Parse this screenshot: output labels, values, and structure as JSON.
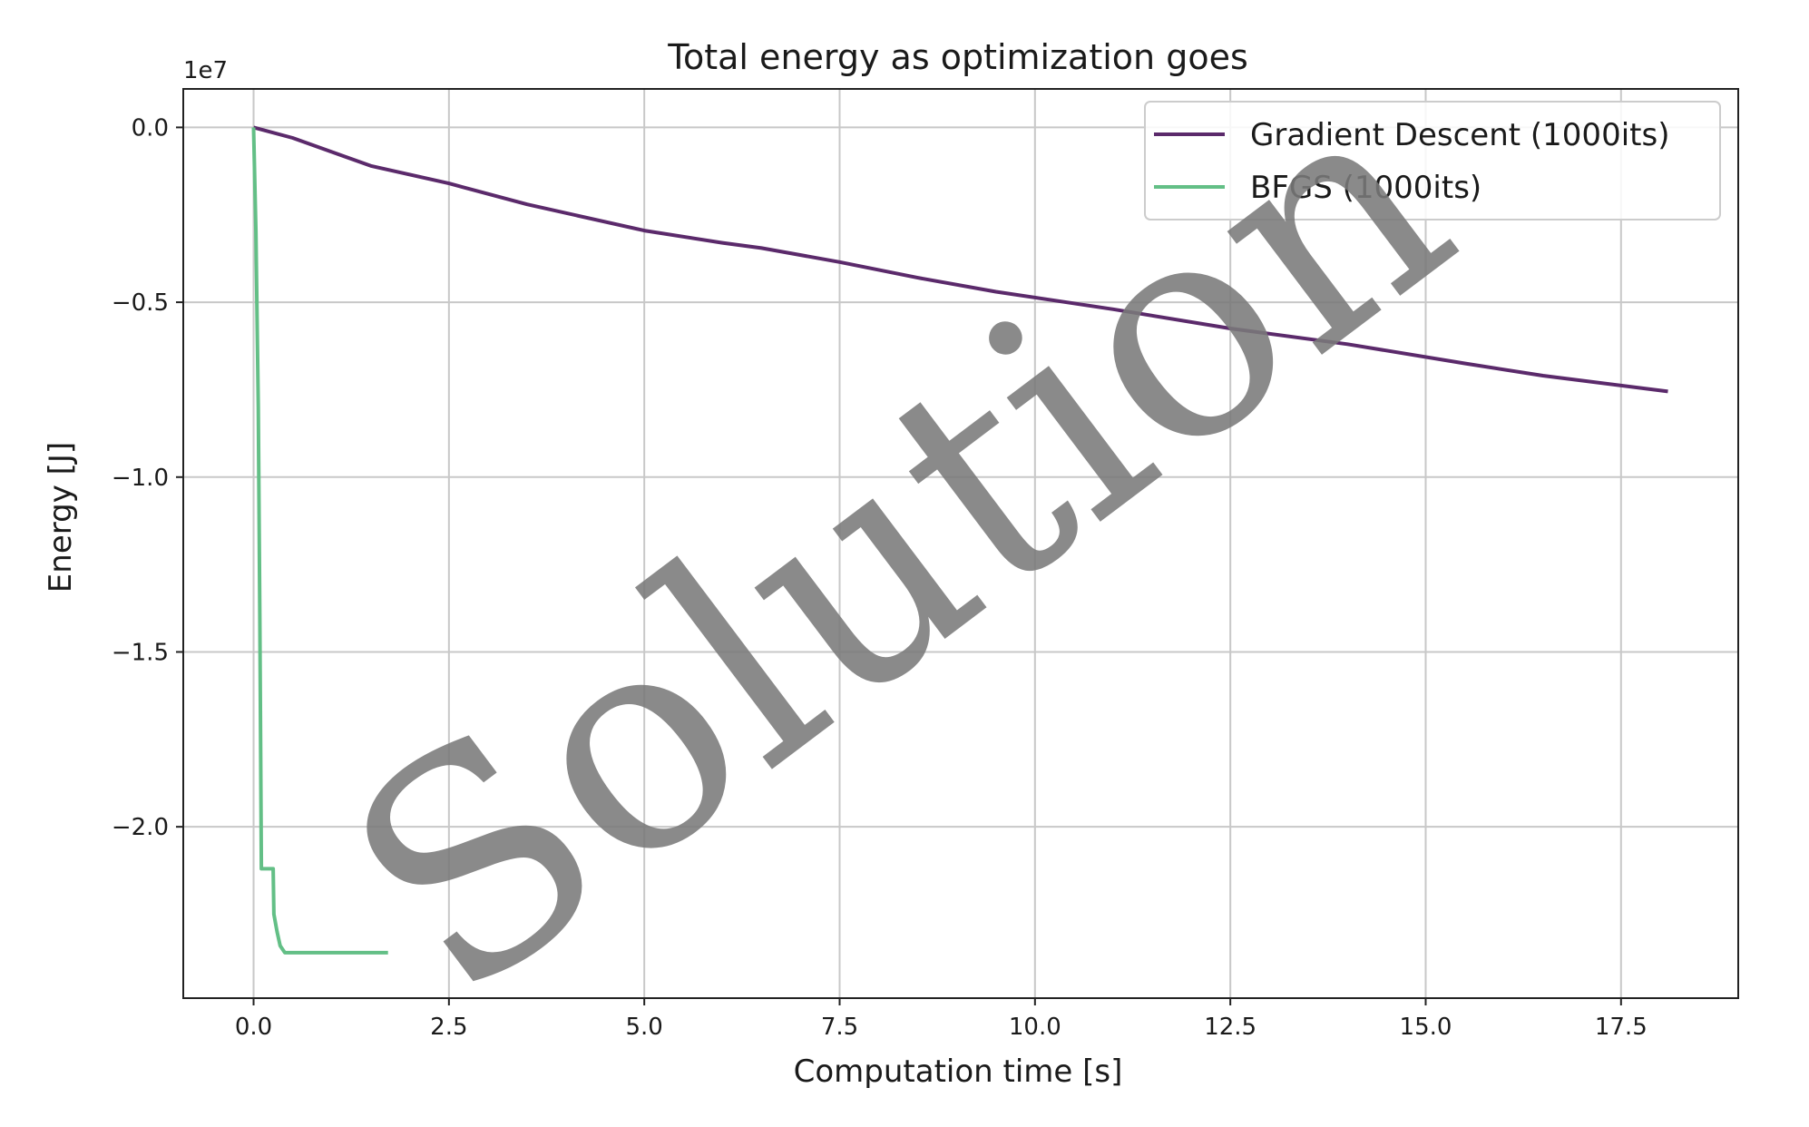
{
  "chart_data": {
    "type": "line",
    "title": "Total energy as optimization goes",
    "xlabel": "Computation time [s]",
    "ylabel": "Energy [J]",
    "y_offset_text": "1e7",
    "y_scale_factor": 10000000,
    "xlim": [
      -0.9,
      19.0
    ],
    "ylim": [
      -24900000.0,
      1100000.0
    ],
    "xticks": [
      0.0,
      2.5,
      5.0,
      7.5,
      10.0,
      12.5,
      15.0,
      17.5
    ],
    "xtick_labels": [
      "0.0",
      "2.5",
      "5.0",
      "7.5",
      "10.0",
      "12.5",
      "15.0",
      "17.5"
    ],
    "yticks": [
      0.0,
      -5000000,
      -10000000,
      -15000000,
      -20000000
    ],
    "ytick_labels": [
      "0.0",
      "−0.5",
      "−1.0",
      "−1.5",
      "−2.0"
    ],
    "grid": true,
    "legend_position": "top-right",
    "series": [
      {
        "name": "Gradient Descent (1000its)",
        "color": "#5b2a6b",
        "x": [
          0.0,
          0.5,
          1.0,
          1.5,
          2.5,
          3.5,
          5.0,
          6.0,
          6.5,
          7.5,
          8.5,
          9.5,
          11.0,
          12.5,
          14.0,
          15.5,
          16.5,
          18.1
        ],
        "y": [
          0,
          -300000,
          -700000,
          -1100000,
          -1600000,
          -2200000,
          -2950000,
          -3300000,
          -3450000,
          -3850000,
          -4300000,
          -4700000,
          -5200000,
          -5750000,
          -6200000,
          -6750000,
          -7100000,
          -7550000
        ]
      },
      {
        "name": "BFGS (1000its)",
        "color": "#63bf86",
        "x": [
          0.0,
          0.03,
          0.06,
          0.08,
          0.1,
          0.12,
          0.25,
          0.26,
          0.3,
          0.34,
          0.4,
          0.45,
          0.6,
          1.0,
          1.72
        ],
        "y": [
          0,
          -3000000,
          -8000000,
          -14000000,
          -21200000,
          -21200000,
          -21200000,
          -22500000,
          -23000000,
          -23400000,
          -23600000,
          -23600000,
          -23600000,
          -23600000,
          -23600000
        ]
      }
    ],
    "watermark": "Solution"
  }
}
